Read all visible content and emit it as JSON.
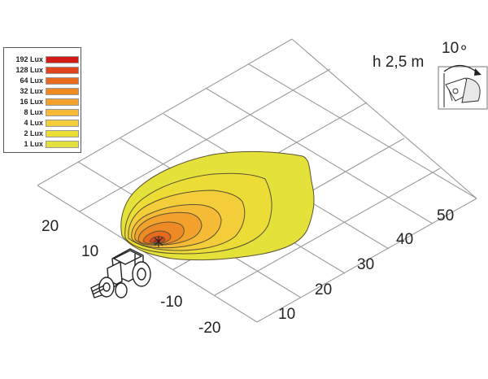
{
  "legend": {
    "items": [
      {
        "label": "192 Lux",
        "color": "#d11a16"
      },
      {
        "label": "128 Lux",
        "color": "#e0441a"
      },
      {
        "label": "64 Lux",
        "color": "#e86a1e"
      },
      {
        "label": "32 Lux",
        "color": "#ee8a24"
      },
      {
        "label": "16 Lux",
        "color": "#f2a22c"
      },
      {
        "label": "8 Lux",
        "color": "#f5bb36"
      },
      {
        "label": "4 Lux",
        "color": "#f3cd3a"
      },
      {
        "label": "2 Lux",
        "color": "#ecdc36"
      },
      {
        "label": "1 Lux",
        "color": "#e4e23a"
      }
    ]
  },
  "mounting": {
    "height_label": "h 2,5 m",
    "angle_label": "10∘"
  },
  "axes": {
    "left_ticks": [
      "20",
      "10",
      "-10",
      "-20"
    ],
    "right_ticks": [
      "10",
      "20",
      "30",
      "40",
      "50"
    ]
  },
  "colors": {
    "grid": "#9a9a9a",
    "contour_line": "#5a5230",
    "outer_fill": "#e2e23c"
  },
  "icons": {
    "tractor": "tractor-icon",
    "lamp": "work-lamp-icon"
  }
}
